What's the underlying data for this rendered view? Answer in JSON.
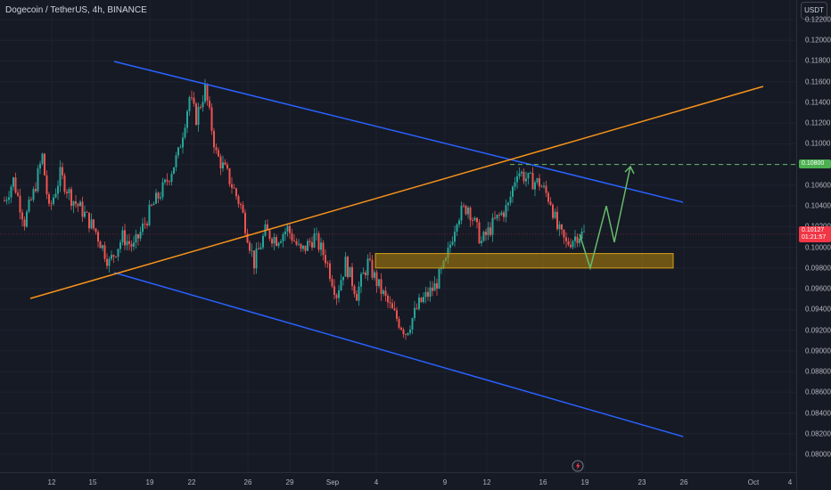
{
  "header": {
    "title": "Dogecoin / TetherUS, 4h, BINANCE",
    "currency": "USDT"
  },
  "colors": {
    "background": "#161a25",
    "up_candle": "#26a69a",
    "down_candle": "#ef5350",
    "channel_line": "#2962ff",
    "trend_line": "#f7931a",
    "zone_fill": "#b8860b",
    "zone_border": "#d4a017",
    "projection": "#66bb6a",
    "target_tag": "#4caf50",
    "current_tag": "#f23645"
  },
  "chart_data": {
    "type": "candlestick",
    "y_axis": {
      "ticks": [
        "0.12200",
        "0.12000",
        "0.11800",
        "0.11600",
        "0.11400",
        "0.11200",
        "0.11000",
        "0.10800",
        "0.10600",
        "0.10400",
        "0.10200",
        "0.10000",
        "0.09800",
        "0.09600",
        "0.09400",
        "0.09200",
        "0.09000",
        "0.08800",
        "0.08600",
        "0.08400",
        "0.08200",
        "0.08000"
      ],
      "range": [
        0.079,
        0.1225
      ]
    },
    "x_axis": {
      "ticks": [
        "12",
        "15",
        "19",
        "22",
        "26",
        "29",
        "Sep",
        "4",
        "9",
        "12",
        "16",
        "19",
        "23",
        "26",
        "Oct",
        "4"
      ]
    },
    "price_labels": {
      "target": "0.10800",
      "current_price": "0.10127",
      "current_countdown": "01:21:57"
    },
    "ohlc_path": [
      {
        "t": 0,
        "p": 0.1045
      },
      {
        "t": 4,
        "p": 0.1065
      },
      {
        "t": 9,
        "p": 0.1025
      },
      {
        "t": 13,
        "p": 0.1052
      },
      {
        "t": 17,
        "p": 0.1088
      },
      {
        "t": 20,
        "p": 0.1035
      },
      {
        "t": 25,
        "p": 0.107
      },
      {
        "t": 30,
        "p": 0.1048
      },
      {
        "t": 35,
        "p": 0.1035
      },
      {
        "t": 41,
        "p": 0.1015
      },
      {
        "t": 47,
        "p": 0.0985
      },
      {
        "t": 53,
        "p": 0.101
      },
      {
        "t": 58,
        "p": 0.1
      },
      {
        "t": 66,
        "p": 0.1038
      },
      {
        "t": 72,
        "p": 0.106
      },
      {
        "t": 78,
        "p": 0.109
      },
      {
        "t": 83,
        "p": 0.1145
      },
      {
        "t": 86,
        "p": 0.1125
      },
      {
        "t": 90,
        "p": 0.1153
      },
      {
        "t": 95,
        "p": 0.109
      },
      {
        "t": 100,
        "p": 0.107
      },
      {
        "t": 106,
        "p": 0.104
      },
      {
        "t": 112,
        "p": 0.0985
      },
      {
        "t": 117,
        "p": 0.1015
      },
      {
        "t": 122,
        "p": 0.1008
      },
      {
        "t": 127,
        "p": 0.1018
      },
      {
        "t": 133,
        "p": 0.0995
      },
      {
        "t": 139,
        "p": 0.101
      },
      {
        "t": 144,
        "p": 0.099
      },
      {
        "t": 149,
        "p": 0.0955
      },
      {
        "t": 153,
        "p": 0.0985
      },
      {
        "t": 158,
        "p": 0.0955
      },
      {
        "t": 163,
        "p": 0.0985
      },
      {
        "t": 168,
        "p": 0.0962
      },
      {
        "t": 174,
        "p": 0.0938
      },
      {
        "t": 180,
        "p": 0.0918
      },
      {
        "t": 186,
        "p": 0.0945
      },
      {
        "t": 193,
        "p": 0.0962
      },
      {
        "t": 198,
        "p": 0.0985
      },
      {
        "t": 203,
        "p": 0.103
      },
      {
        "t": 208,
        "p": 0.104
      },
      {
        "t": 214,
        "p": 0.1005
      },
      {
        "t": 220,
        "p": 0.1025
      },
      {
        "t": 226,
        "p": 0.104
      },
      {
        "t": 230,
        "p": 0.1075
      },
      {
        "t": 235,
        "p": 0.1065
      },
      {
        "t": 240,
        "p": 0.1062
      },
      {
        "t": 245,
        "p": 0.1045
      },
      {
        "t": 248,
        "p": 0.1018
      },
      {
        "t": 252,
        "p": 0.1003
      },
      {
        "t": 257,
        "p": 0.1012
      },
      {
        "t": 260,
        "p": 0.1013
      }
    ],
    "annotations": {
      "support_zone": {
        "low": 0.098,
        "high": 0.0994
      },
      "target_level": 0.108,
      "current_level": 0.10127,
      "projection_path": [
        0.10127,
        0.098,
        0.104,
        0.1005,
        0.1078
      ]
    }
  }
}
